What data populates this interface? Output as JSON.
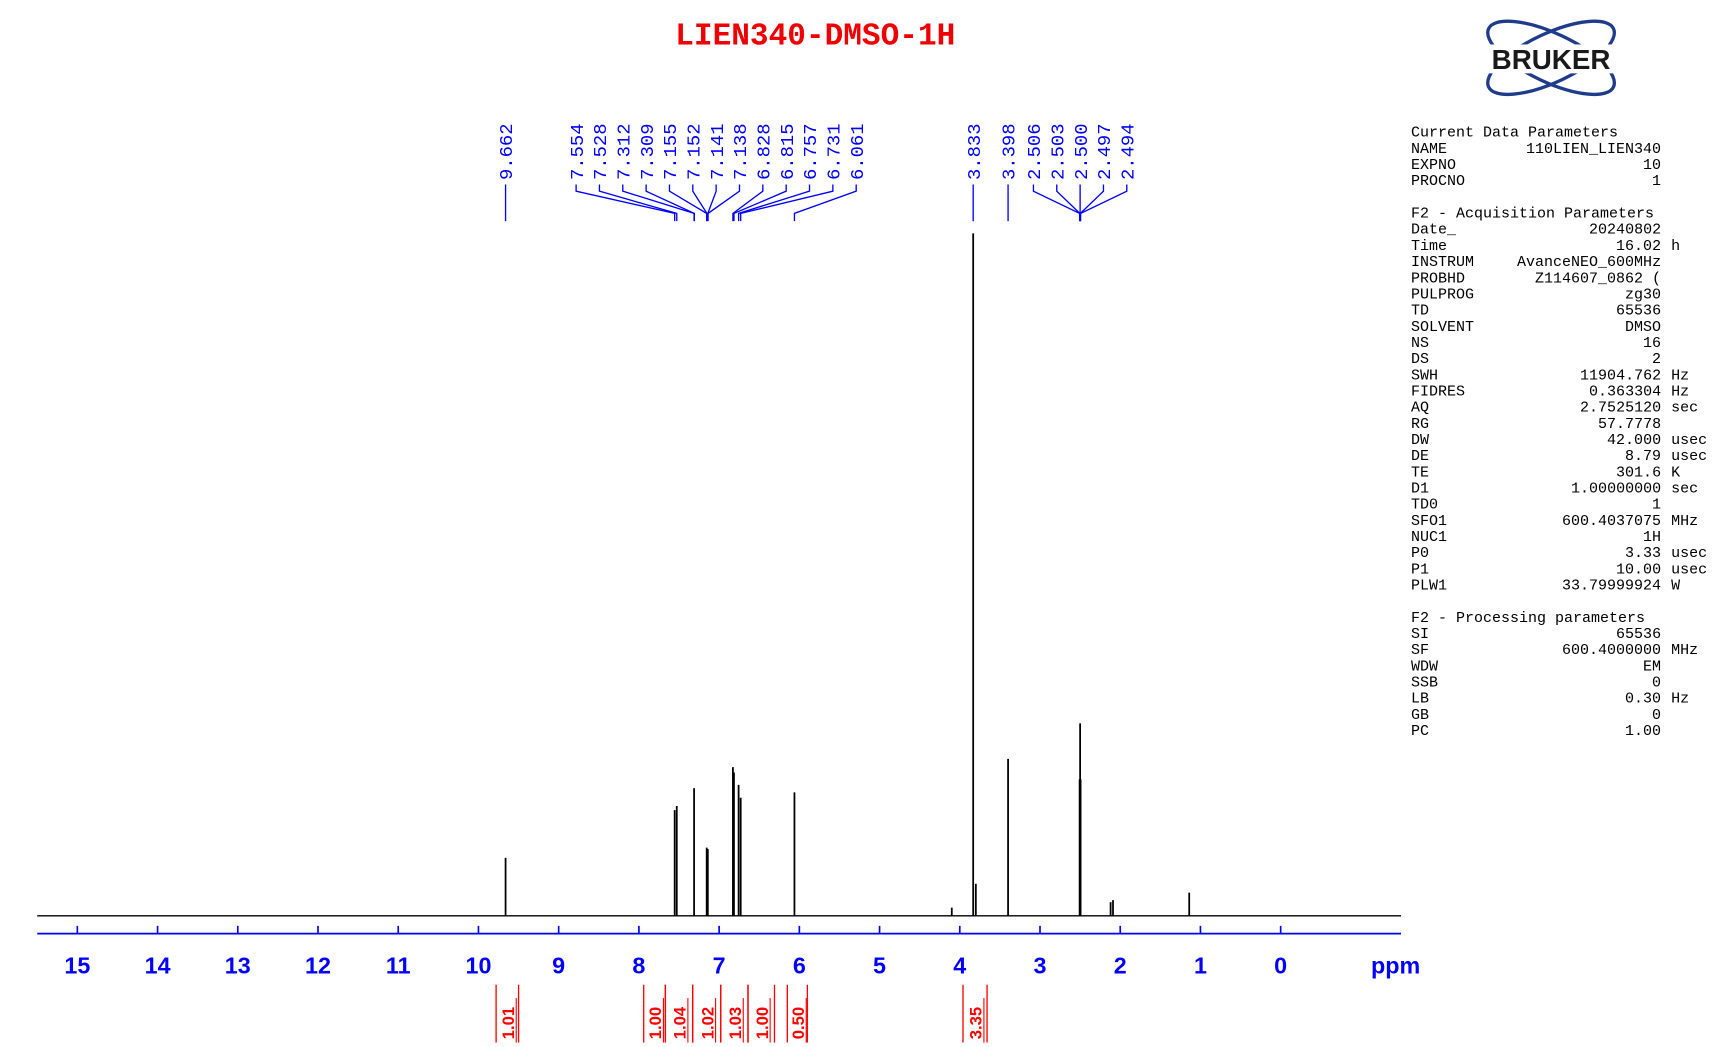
{
  "chart_data": {
    "type": "nmr",
    "title": "LIEN340-DMSO-1H",
    "xlabel": "ppm",
    "xlim": [
      15.5,
      -1.5
    ],
    "xticks": [
      15,
      14,
      13,
      12,
      11,
      10,
      9,
      8,
      7,
      6,
      5,
      4,
      3,
      2,
      1,
      0
    ],
    "ylim": [
      0,
      100
    ],
    "color": "#000000",
    "label_color": "#0000ff",
    "integral_color": "#ff0000",
    "peaks": [
      {
        "x": 9.662,
        "y": 8.5
      },
      {
        "x": 7.554,
        "y": 15.5
      },
      {
        "x": 7.528,
        "y": 16.1
      },
      {
        "x": 7.312,
        "y": 18.7
      },
      {
        "x": 7.155,
        "y": 10
      },
      {
        "x": 7.141,
        "y": 9.8
      },
      {
        "x": 6.828,
        "y": 21.8
      },
      {
        "x": 6.815,
        "y": 21
      },
      {
        "x": 6.757,
        "y": 19.2
      },
      {
        "x": 6.731,
        "y": 17.3
      },
      {
        "x": 6.061,
        "y": 18.1
      },
      {
        "x": 4.1,
        "y": 1.2
      },
      {
        "x": 3.833,
        "y": 100
      },
      {
        "x": 3.8,
        "y": 4.7
      },
      {
        "x": 3.398,
        "y": 23
      },
      {
        "x": 2.506,
        "y": 20
      },
      {
        "x": 2.5,
        "y": 28.2
      },
      {
        "x": 2.494,
        "y": 20
      },
      {
        "x": 2.12,
        "y": 2
      },
      {
        "x": 2.09,
        "y": 2.3
      },
      {
        "x": 1.14,
        "y": 3.4
      }
    ],
    "peak_labels": [
      9.662,
      7.554,
      7.528,
      7.312,
      7.309,
      7.155,
      7.152,
      7.141,
      7.138,
      6.828,
      6.815,
      6.757,
      6.731,
      6.061,
      3.833,
      3.398,
      2.506,
      2.503,
      {
        "value": 2.5,
        "label": "2.500"
      },
      2.497,
      2.494
    ],
    "integral_ranges": [
      [
        9.78,
        9.5
      ],
      [
        7.94,
        7.67
      ],
      [
        7.67,
        7.33
      ],
      [
        7.33,
        6.98
      ],
      [
        6.98,
        6.64
      ],
      [
        6.64,
        6.31
      ],
      [
        6.15,
        5.9
      ],
      [
        3.96,
        3.66
      ]
    ],
    "integral_values": [
      1.01,
      {
        "value": 1,
        "label": "1.00"
      },
      1.04,
      1.02,
      1.03,
      {
        "value": 1,
        "label": "1.00"
      },
      {
        "value": 0.5,
        "label": "0.50"
      },
      3.35
    ]
  },
  "logo": "BRUKER",
  "parameters": [
    {
      "title": "Current Data Parameters",
      "rows": [
        [
          "NAME",
          "110LIEN_LIEN340"
        ],
        [
          "EXPNO",
          "10"
        ],
        [
          "PROCNO",
          "1"
        ]
      ]
    },
    {
      "title": "F2 - Acquisition Parameters",
      "rows": [
        [
          "Date_",
          "20240802"
        ],
        [
          "Time",
          "16.02",
          "h"
        ],
        [
          "INSTRUM",
          "AvanceNEO_600MHz"
        ],
        [
          "PROBHD",
          "Z114607_0862 ("
        ],
        [
          "PULPROG",
          "zg30"
        ],
        [
          "TD",
          "65536"
        ],
        [
          "SOLVENT",
          "DMSO"
        ],
        [
          "NS",
          "16"
        ],
        [
          "DS",
          "2"
        ],
        [
          "SWH",
          "11904.762",
          "Hz"
        ],
        [
          "FIDRES",
          "0.363304",
          "Hz"
        ],
        [
          "AQ",
          "2.7525120",
          "sec"
        ],
        [
          "RG",
          "57.7778"
        ],
        [
          "DW",
          "42.000",
          "usec"
        ],
        [
          "DE",
          "8.79",
          "usec"
        ],
        [
          "TE",
          "301.6",
          "K"
        ],
        [
          "D1",
          "1.00000000",
          "sec"
        ],
        [
          "TD0",
          "1"
        ],
        [
          "SFO1",
          "600.4037075",
          "MHz"
        ],
        [
          "NUC1",
          "1H"
        ],
        [
          "P0",
          "3.33",
          "usec"
        ],
        [
          "P1",
          "10.00",
          "usec"
        ],
        [
          "PLW1",
          "33.79999924",
          "W"
        ]
      ]
    },
    {
      "title": "F2 - Processing parameters",
      "rows": [
        [
          "SI",
          "65536"
        ],
        [
          "SF",
          "600.4000000",
          "MHz"
        ],
        [
          "WDW",
          "EM"
        ],
        [
          "SSB",
          "0"
        ],
        [
          "LB",
          "0.30",
          "Hz"
        ],
        [
          "GB",
          "0"
        ],
        [
          "PC",
          "1.00"
        ]
      ]
    }
  ]
}
